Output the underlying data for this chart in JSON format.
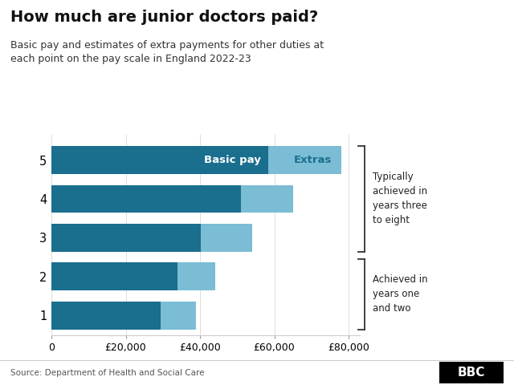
{
  "title": "How much are junior doctors paid?",
  "subtitle": "Basic pay and estimates of extra payments for other duties at\neach point on the pay scale in England 2022-23",
  "categories": [
    1,
    2,
    3,
    4,
    5
  ],
  "basic_pay": [
    29384,
    34012,
    40257,
    51017,
    58398
  ],
  "extras": [
    9616,
    9988,
    13743,
    13983,
    19602
  ],
  "color_basic": "#1a6e8e",
  "color_extras": "#7bbdd4",
  "xlabel_vals": [
    0,
    20000,
    40000,
    60000,
    80000
  ],
  "xlabel_labels": [
    "0",
    "£20,000",
    "£40,000",
    "£60,000",
    "£80,000"
  ],
  "legend_basic": "Basic pay",
  "legend_extras": "Extras",
  "source": "Source: Department of Health and Social Care",
  "bracket_top_label": "Typically\nachieved in\nyears three\nto eight",
  "bracket_bottom_label": "Achieved in\nyears one\nand two",
  "background_color": "#ffffff",
  "bar_height": 0.72,
  "xlim": [
    0,
    83000
  ]
}
